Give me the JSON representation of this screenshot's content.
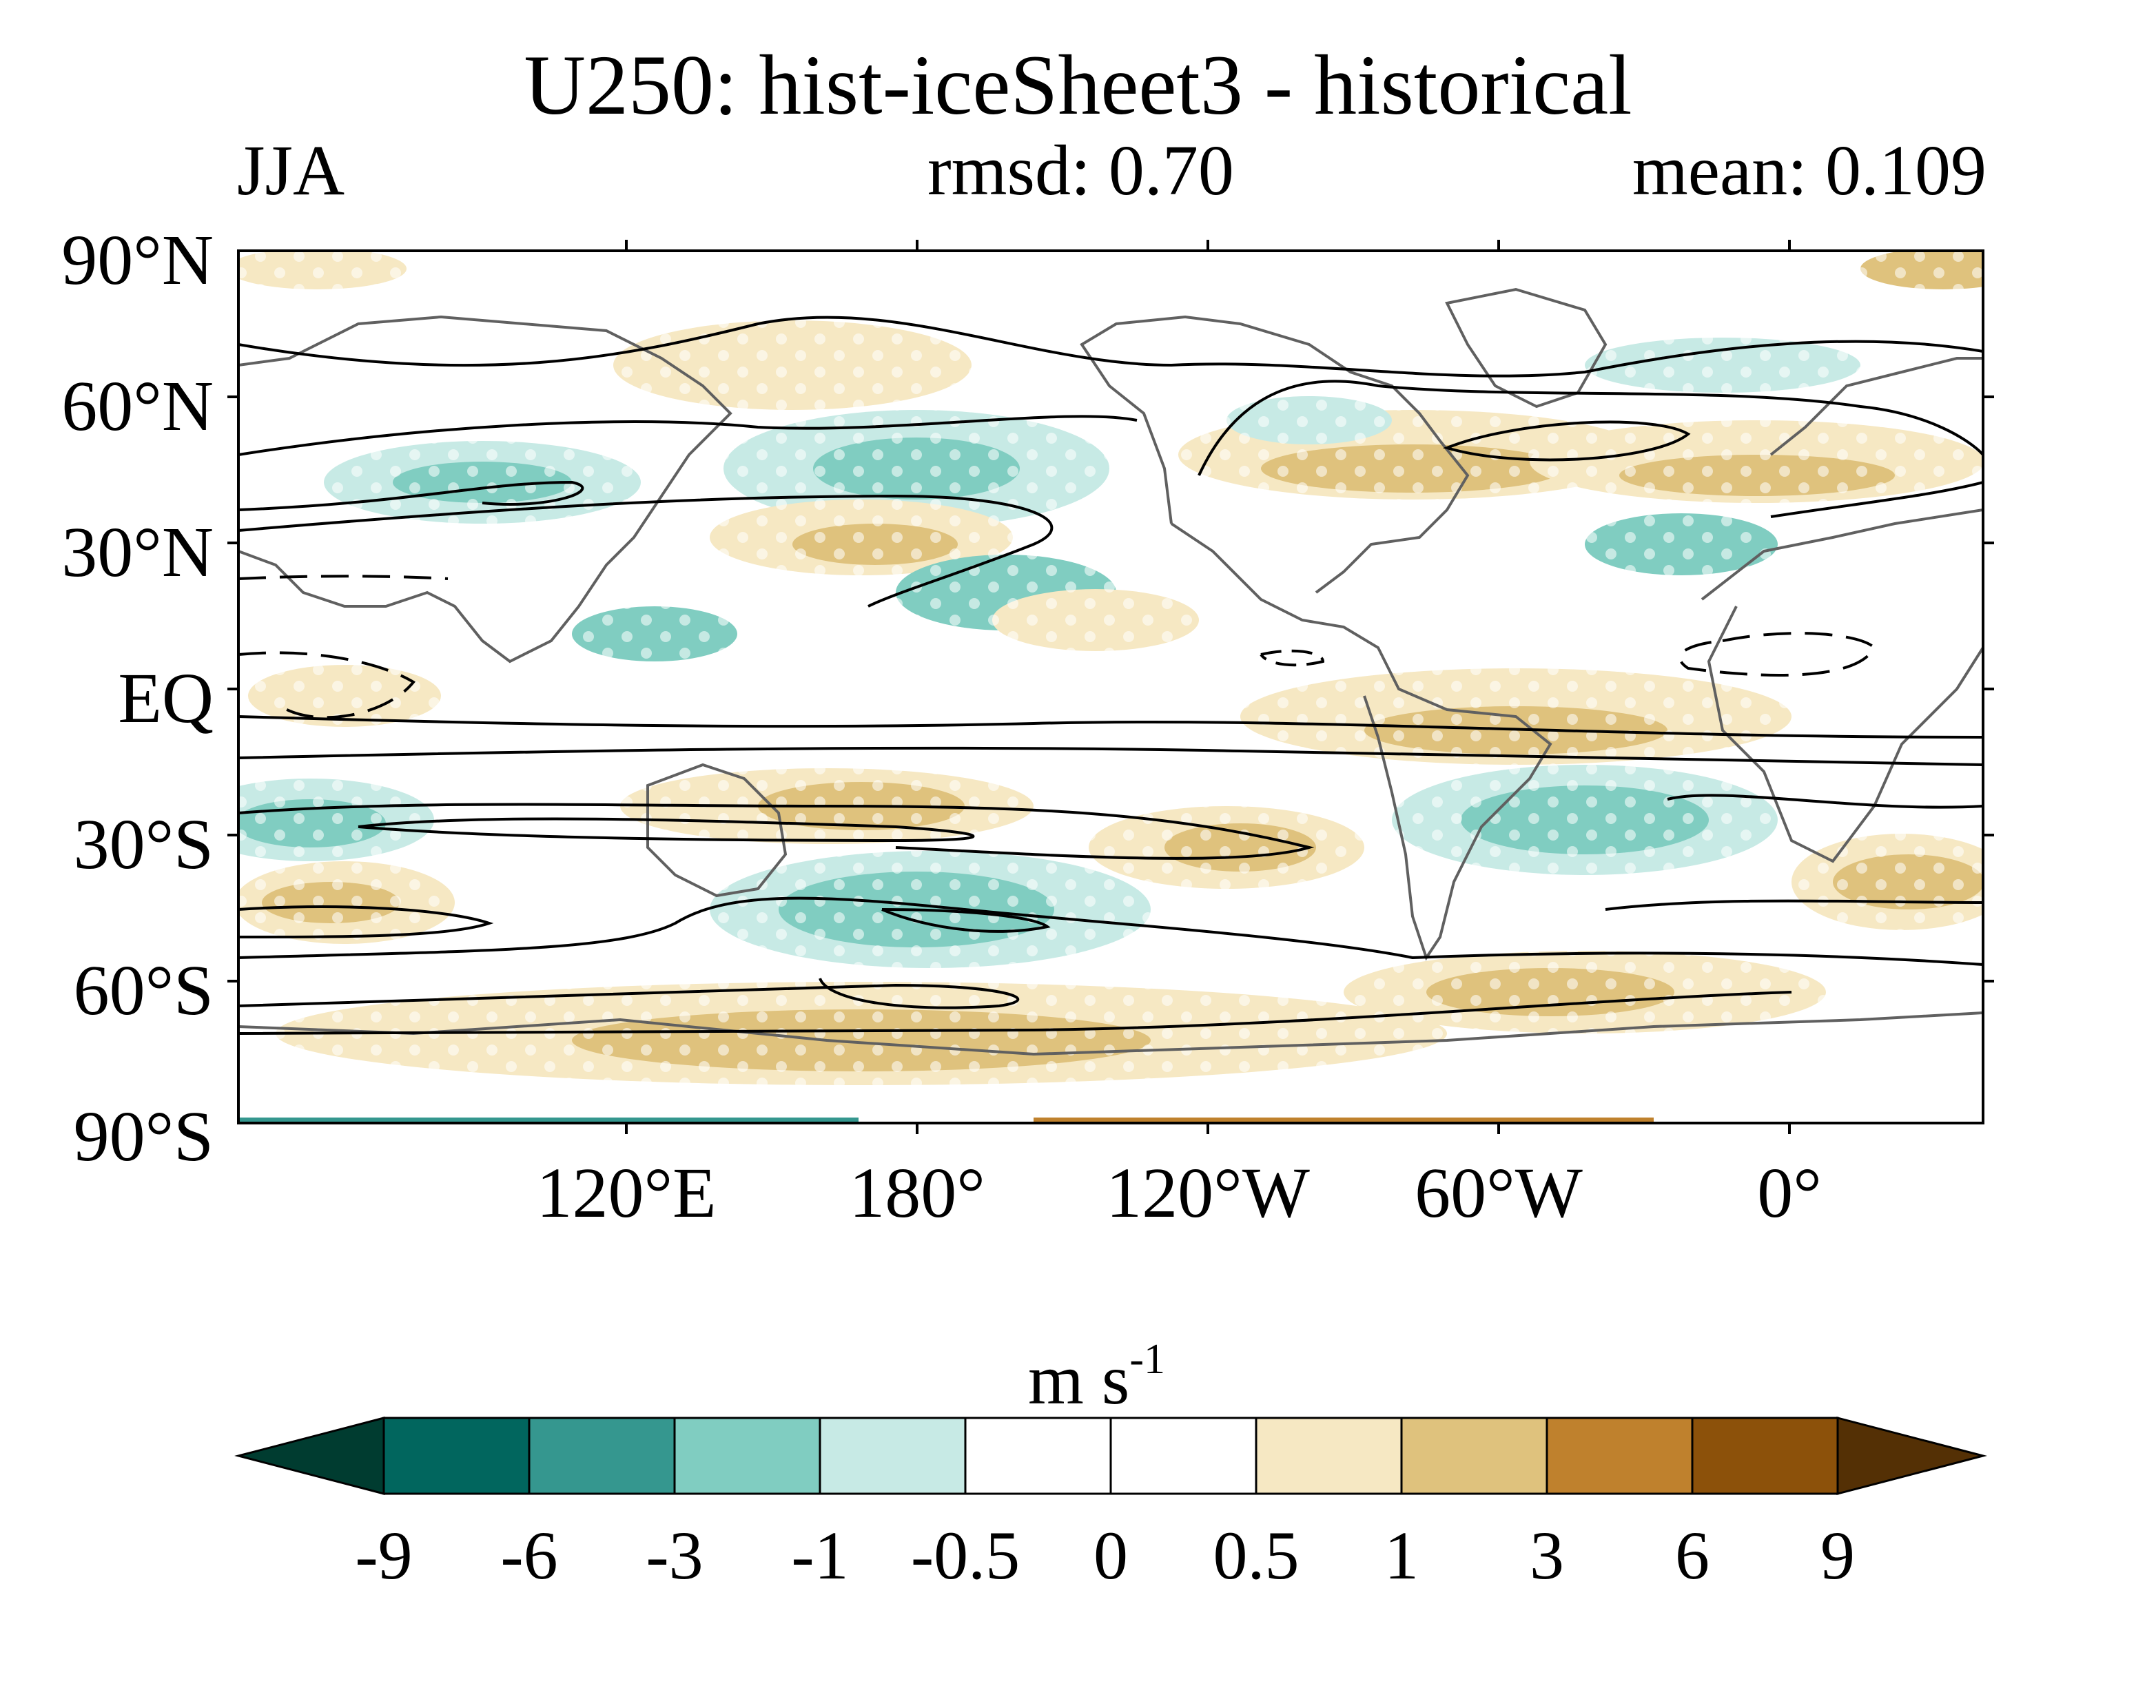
{
  "header": {
    "title": "U250: hist-iceSheet3 - historical",
    "season": "JJA",
    "rmsd": "rmsd: 0.70",
    "mean": "mean: 0.109"
  },
  "map": {
    "projection": "equirectangular",
    "lon_range": [
      20,
      380
    ],
    "lat_range": [
      -90,
      90
    ],
    "lat_labels": [
      "90°N",
      "60°N",
      "30°N",
      "EQ",
      "30°S",
      "60°S",
      "90°S"
    ],
    "lon_labels": [
      "120°E",
      "180°",
      "120°W",
      "60°W",
      "0°"
    ],
    "coastline_color": "#606060",
    "contour_color": "#000000",
    "stipple": "white dots = significant"
  },
  "colorbar": {
    "units_base": "m s",
    "units_exp": "-1",
    "labels": [
      "-9",
      "-6",
      "-3",
      "-1",
      "-0.5",
      "0",
      "0.5",
      "1",
      "3",
      "6",
      "9"
    ],
    "colors": [
      "#003c30",
      "#01665e",
      "#35978f",
      "#80cdc1",
      "#c7eae5",
      "#ffffff",
      "#ffffff",
      "#f6e8c3",
      "#dfc27d",
      "#bf812d",
      "#8c510a",
      "#543005"
    ]
  }
}
